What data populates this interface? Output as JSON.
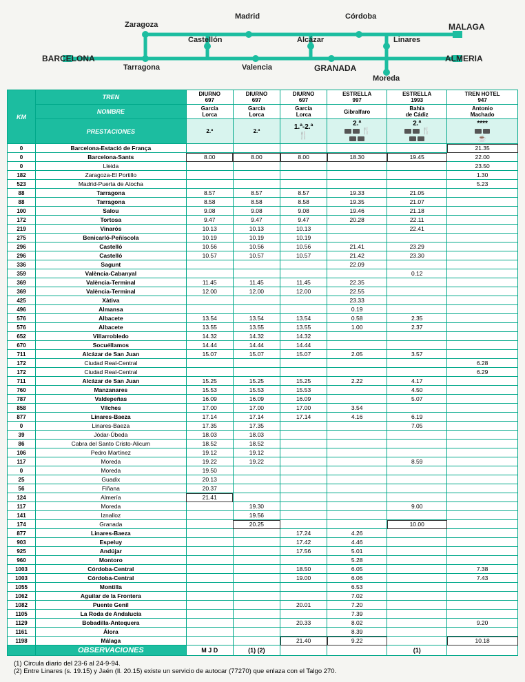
{
  "map": {
    "line_color": "#1cbda0",
    "node_color": "#1cbda0",
    "stations": {
      "barcelona": "BARCELONA",
      "zaragoza": "Zaragoza",
      "madrid": "Madrid",
      "tarragona": "Tarragona",
      "castellon": "Castellón",
      "valencia": "Valencia",
      "alcazar": "Alcázar",
      "cordoba": "Córdoba",
      "linares": "Linares",
      "granada": "GRANADA",
      "moreda": "Moreda",
      "malaga": "MALAGA",
      "almeria": "ALMERIA"
    }
  },
  "headers": {
    "tren": "TREN",
    "nombre": "NOMBRE",
    "km": "KM",
    "prest": "PRESTACIONES",
    "obs": "OBSERVACIONES",
    "trains": [
      {
        "type": "DIURNO",
        "num": "697",
        "name": "García\nLorca",
        "class": "2.ª"
      },
      {
        "type": "DIURNO",
        "num": "697",
        "name": "García\nLorca",
        "class": "2.ª"
      },
      {
        "type": "DIURNO",
        "num": "697",
        "name": "García\nLorca",
        "class": "1.ª-2.ª"
      },
      {
        "type": "ESTRELLA",
        "num": "997",
        "name": "Gibralfaro",
        "class": "2.ª"
      },
      {
        "type": "ESTRELLA",
        "num": "1993",
        "name": "Bahía\nde Cádiz",
        "class": "2.ª"
      },
      {
        "type": "TREN HOTEL",
        "num": "947",
        "name": "Antonio\nMachado",
        "class": "****"
      }
    ]
  },
  "obs_cells": [
    "M J D",
    "(1) (2)",
    "",
    "",
    "(1)",
    ""
  ],
  "rows": [
    {
      "km": "0",
      "st": "Barcelona-Estació de França",
      "t": [
        "",
        "",
        "",
        "",
        "",
        "21.35"
      ],
      "box": [
        5
      ]
    },
    {
      "km": "0",
      "st": "Barcelona-Sants",
      "t": [
        "8.00",
        "8.00",
        "8.00",
        "18.30",
        "19.45",
        "22.00"
      ],
      "box": [
        0,
        1,
        2,
        3,
        4
      ]
    },
    {
      "km": "0",
      "st": "Lleida",
      "sub": 1,
      "t": [
        "",
        "",
        "",
        "",
        "",
        "23.50"
      ]
    },
    {
      "km": "182",
      "st": "Zaragoza-El Portillo",
      "sub": 1,
      "t": [
        "",
        "",
        "",
        "",
        "",
        "1.30"
      ]
    },
    {
      "km": "523",
      "st": "Madrid-Puerta de Atocha",
      "sub": 1,
      "t": [
        "",
        "",
        "",
        "",
        "",
        "5.23"
      ],
      "sect": 1
    },
    {
      "km": "88",
      "st": "Tarragona",
      "t": [
        "8.57",
        "8.57",
        "8.57",
        "19.33",
        "21.05",
        ""
      ]
    },
    {
      "km": "88",
      "st": "Tarragona",
      "t": [
        "8.58",
        "8.58",
        "8.58",
        "19.35",
        "21.07",
        ""
      ]
    },
    {
      "km": "100",
      "st": "Salou",
      "t": [
        "9.08",
        "9.08",
        "9.08",
        "19.46",
        "21.18",
        ""
      ]
    },
    {
      "km": "172",
      "st": "Tortosa",
      "t": [
        "9.47",
        "9.47",
        "9.47",
        "20.28",
        "22.11",
        ""
      ]
    },
    {
      "km": "219",
      "st": "Vinarós",
      "t": [
        "10.13",
        "10.13",
        "10.13",
        "",
        "22.41",
        ""
      ]
    },
    {
      "km": "275",
      "st": "Benicarló-Peñíscola",
      "t": [
        "10.19",
        "10.19",
        "10.19",
        "",
        "",
        ""
      ]
    },
    {
      "km": "296",
      "st": "Castelló",
      "t": [
        "10.56",
        "10.56",
        "10.56",
        "21.41",
        "23.29",
        ""
      ]
    },
    {
      "km": "296",
      "st": "Castelló",
      "t": [
        "10.57",
        "10.57",
        "10.57",
        "21.42",
        "23.30",
        ""
      ]
    },
    {
      "km": "336",
      "st": "Sagunt",
      "t": [
        "",
        "",
        "",
        "22.09",
        "",
        ""
      ]
    },
    {
      "km": "359",
      "st": "València-Cabanyal",
      "t": [
        "",
        "",
        "",
        "",
        "0.12",
        ""
      ]
    },
    {
      "km": "369",
      "st": "València-Terminal",
      "t": [
        "11.45",
        "11.45",
        "11.45",
        "22.35",
        "",
        ""
      ]
    },
    {
      "km": "369",
      "st": "València-Terminal",
      "t": [
        "12.00",
        "12.00",
        "12.00",
        "22.55",
        "",
        ""
      ]
    },
    {
      "km": "425",
      "st": "Xàtiva",
      "t": [
        "",
        "",
        "",
        "23.33",
        "",
        ""
      ]
    },
    {
      "km": "496",
      "st": "Almansa",
      "t": [
        "",
        "",
        "",
        "0.19",
        "",
        ""
      ]
    },
    {
      "km": "576",
      "st": "Albacete",
      "t": [
        "13.54",
        "13.54",
        "13.54",
        "0.58",
        "2.35",
        ""
      ]
    },
    {
      "km": "576",
      "st": "Albacete",
      "t": [
        "13.55",
        "13.55",
        "13.55",
        "1.00",
        "2.37",
        ""
      ]
    },
    {
      "km": "652",
      "st": "Villarrobledo",
      "t": [
        "14.32",
        "14.32",
        "14.32",
        "",
        "",
        ""
      ]
    },
    {
      "km": "670",
      "st": "Socuéllamos",
      "t": [
        "14.44",
        "14.44",
        "14.44",
        "",
        "",
        ""
      ]
    },
    {
      "km": "711",
      "st": "Alcázar de San Juan",
      "t": [
        "15.07",
        "15.07",
        "15.07",
        "2.05",
        "3.57",
        ""
      ],
      "sect": 1
    },
    {
      "km": "172",
      "st": "Ciudad Real-Central",
      "sub": 1,
      "t": [
        "",
        "",
        "",
        "",
        "",
        "6.28"
      ]
    },
    {
      "km": "172",
      "st": "Ciudad Real-Central",
      "sub": 1,
      "t": [
        "",
        "",
        "",
        "",
        "",
        "6.29"
      ],
      "sect": 1
    },
    {
      "km": "711",
      "st": "Alcázar de San Juan",
      "t": [
        "15.25",
        "15.25",
        "15.25",
        "2.22",
        "4.17",
        ""
      ]
    },
    {
      "km": "760",
      "st": "Manzanares",
      "t": [
        "15.53",
        "15.53",
        "15.53",
        "",
        "4.50",
        ""
      ]
    },
    {
      "km": "787",
      "st": "Valdepeñas",
      "t": [
        "16.09",
        "16.09",
        "16.09",
        "",
        "5.07",
        ""
      ]
    },
    {
      "km": "858",
      "st": "Vilches",
      "t": [
        "17.00",
        "17.00",
        "17.00",
        "3.54",
        "",
        ""
      ]
    },
    {
      "km": "877",
      "st": "Linares-Baeza",
      "t": [
        "17.14",
        "17.14",
        "17.14",
        "4.16",
        "6.19",
        ""
      ],
      "sect": 1
    },
    {
      "km": "0",
      "st": "Linares-Baeza",
      "sub": 1,
      "t": [
        "17.35",
        "17.35",
        "",
        "",
        "7.05",
        ""
      ]
    },
    {
      "km": "39",
      "st": "Jódar-Úbeda",
      "sub": 1,
      "t": [
        "18.03",
        "18.03",
        "",
        "",
        "",
        ""
      ]
    },
    {
      "km": "86",
      "st": "Cabra del Santo Cristo-Alicum",
      "sub": 1,
      "t": [
        "18.52",
        "18.52",
        "",
        "",
        "",
        ""
      ]
    },
    {
      "km": "106",
      "st": "Pedro Martínez",
      "sub": 1,
      "t": [
        "19.12",
        "19.12",
        "",
        "",
        "",
        ""
      ]
    },
    {
      "km": "117",
      "st": "Moreda",
      "sub": 1,
      "t": [
        "19.22",
        "19.22",
        "",
        "",
        "8.59",
        ""
      ],
      "sect": 1
    },
    {
      "km": "0",
      "st": "Moreda",
      "sub": 1,
      "t": [
        "19.50",
        "",
        "",
        "",
        "",
        ""
      ]
    },
    {
      "km": "25",
      "st": "Guadix",
      "sub": 1,
      "t": [
        "20.13",
        "",
        "",
        "",
        "",
        ""
      ]
    },
    {
      "km": "56",
      "st": "Fiñana",
      "sub": 1,
      "t": [
        "20.37",
        "",
        "",
        "",
        "",
        ""
      ]
    },
    {
      "km": "124",
      "st": "Almería",
      "sub": 1,
      "t": [
        "21.41",
        "",
        "",
        "",
        "",
        ""
      ],
      "box": [
        0
      ],
      "sect": 1
    },
    {
      "km": "117",
      "st": "Moreda",
      "sub": 1,
      "t": [
        "",
        "19.30",
        "",
        "",
        "9.00",
        ""
      ]
    },
    {
      "km": "141",
      "st": "Iznalloz",
      "sub": 1,
      "t": [
        "",
        "19.56",
        "",
        "",
        "",
        ""
      ]
    },
    {
      "km": "174",
      "st": "Granada",
      "sub": 1,
      "t": [
        "",
        "20.25",
        "",
        "",
        "10.00",
        ""
      ],
      "box": [
        1,
        4
      ],
      "sect": 1
    },
    {
      "km": "877",
      "st": "Linares-Baeza",
      "t": [
        "",
        "",
        "17.24",
        "4.26",
        "",
        ""
      ]
    },
    {
      "km": "903",
      "st": "Espeluy",
      "t": [
        "",
        "",
        "17.42",
        "4.46",
        "",
        ""
      ]
    },
    {
      "km": "925",
      "st": "Andújar",
      "t": [
        "",
        "",
        "17.56",
        "5.01",
        "",
        ""
      ]
    },
    {
      "km": "960",
      "st": "Montoro",
      "t": [
        "",
        "",
        "",
        "5.28",
        "",
        ""
      ]
    },
    {
      "km": "1003",
      "st": "Córdoba-Central",
      "t": [
        "",
        "",
        "18.50",
        "6.05",
        "",
        "7.38"
      ]
    },
    {
      "km": "1003",
      "st": "Córdoba-Central",
      "t": [
        "",
        "",
        "19.00",
        "6.06",
        "",
        "7.43"
      ]
    },
    {
      "km": "1055",
      "st": "Montilla",
      "t": [
        "",
        "",
        "",
        "6.53",
        "",
        ""
      ]
    },
    {
      "km": "1062",
      "st": "Aguilar de la Frontera",
      "t": [
        "",
        "",
        "",
        "7.02",
        "",
        ""
      ]
    },
    {
      "km": "1082",
      "st": "Puente Genil",
      "t": [
        "",
        "",
        "20.01",
        "7.20",
        "",
        ""
      ]
    },
    {
      "km": "1105",
      "st": "La Roda de Andalucía",
      "t": [
        "",
        "",
        "",
        "7.39",
        "",
        ""
      ]
    },
    {
      "km": "1129",
      "st": "Bobadilla-Antequera",
      "t": [
        "",
        "",
        "20.33",
        "8.02",
        "",
        "9.20"
      ]
    },
    {
      "km": "1161",
      "st": "Álora",
      "t": [
        "",
        "",
        "",
        "8.39",
        "",
        ""
      ]
    },
    {
      "km": "1198",
      "st": "Málaga",
      "t": [
        "",
        "",
        "21.40",
        "9.22",
        "",
        "10.18"
      ],
      "box": [
        2,
        3,
        5
      ],
      "sect": 1
    }
  ],
  "notes": [
    "(1) Circula diario del 23-6 al 24-9-94.",
    "(2) Entre Linares (s. 19.15)  y Jaén (ll. 20.15) existe un servicio de autocar (77270) que enlaza con el Talgo 270."
  ]
}
